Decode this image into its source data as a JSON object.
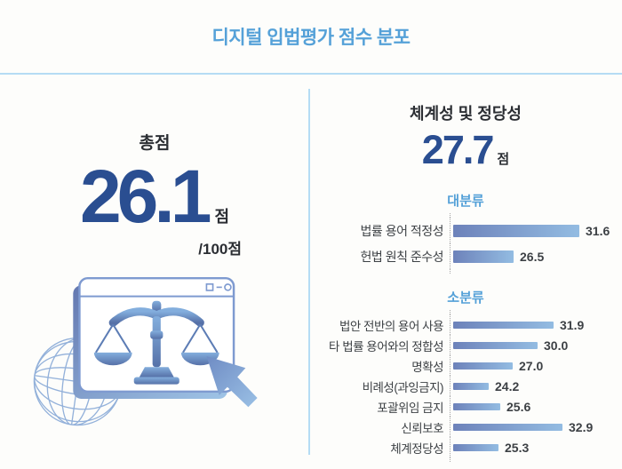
{
  "page": {
    "title": "디지털 입법평가 점수 분포"
  },
  "left_panel": {
    "heading": "총점",
    "score": "26.1",
    "score_unit": "점",
    "score_denominator": "/100점",
    "illustration": "browser window with scales of justice, wireframe globe and cursor arrow"
  },
  "right_panel": {
    "heading": "체계성 및 정당성",
    "score": "27.7",
    "score_unit": "점"
  },
  "chart_data": [
    {
      "type": "bar",
      "orientation": "horizontal",
      "title": "대분류",
      "categories": [
        "법률 용어 적정성",
        "헌법 원칙 준수성"
      ],
      "values": [
        31.6,
        26.5
      ],
      "value_labels": [
        "31.6",
        "26.5"
      ],
      "xlim": [
        21.8,
        35
      ],
      "grid": false,
      "baseline_style": "dotted",
      "bar_gradient": [
        "#6d82ba",
        "#93bce2"
      ]
    },
    {
      "type": "bar",
      "orientation": "horizontal",
      "title": "소분류",
      "categories": [
        "법안 전반의 용어 사용",
        "타 법률 용어와의 정합성",
        "명확성",
        "비례성(과잉금지)",
        "포괄위임 금지",
        "신뢰보호",
        "체계정당성"
      ],
      "values": [
        31.9,
        30.0,
        27.0,
        24.2,
        25.6,
        32.9,
        25.3
      ],
      "value_labels": [
        "31.9",
        "30.0",
        "27.0",
        "24.2",
        "25.6",
        "32.9",
        "25.3"
      ],
      "xlim": [
        20,
        35
      ],
      "grid": false,
      "baseline_style": "dotted",
      "bar_gradient": [
        "#6d82ba",
        "#93bce2"
      ]
    }
  ],
  "colors": {
    "accent_sky_blue": "#55a1d8",
    "divider_light_blue": "#b5dcf4",
    "score_navy": "#2a4e91",
    "text_dark": "#2b2e33",
    "bar_dark": "#6d82ba",
    "bar_light": "#93bce2"
  }
}
